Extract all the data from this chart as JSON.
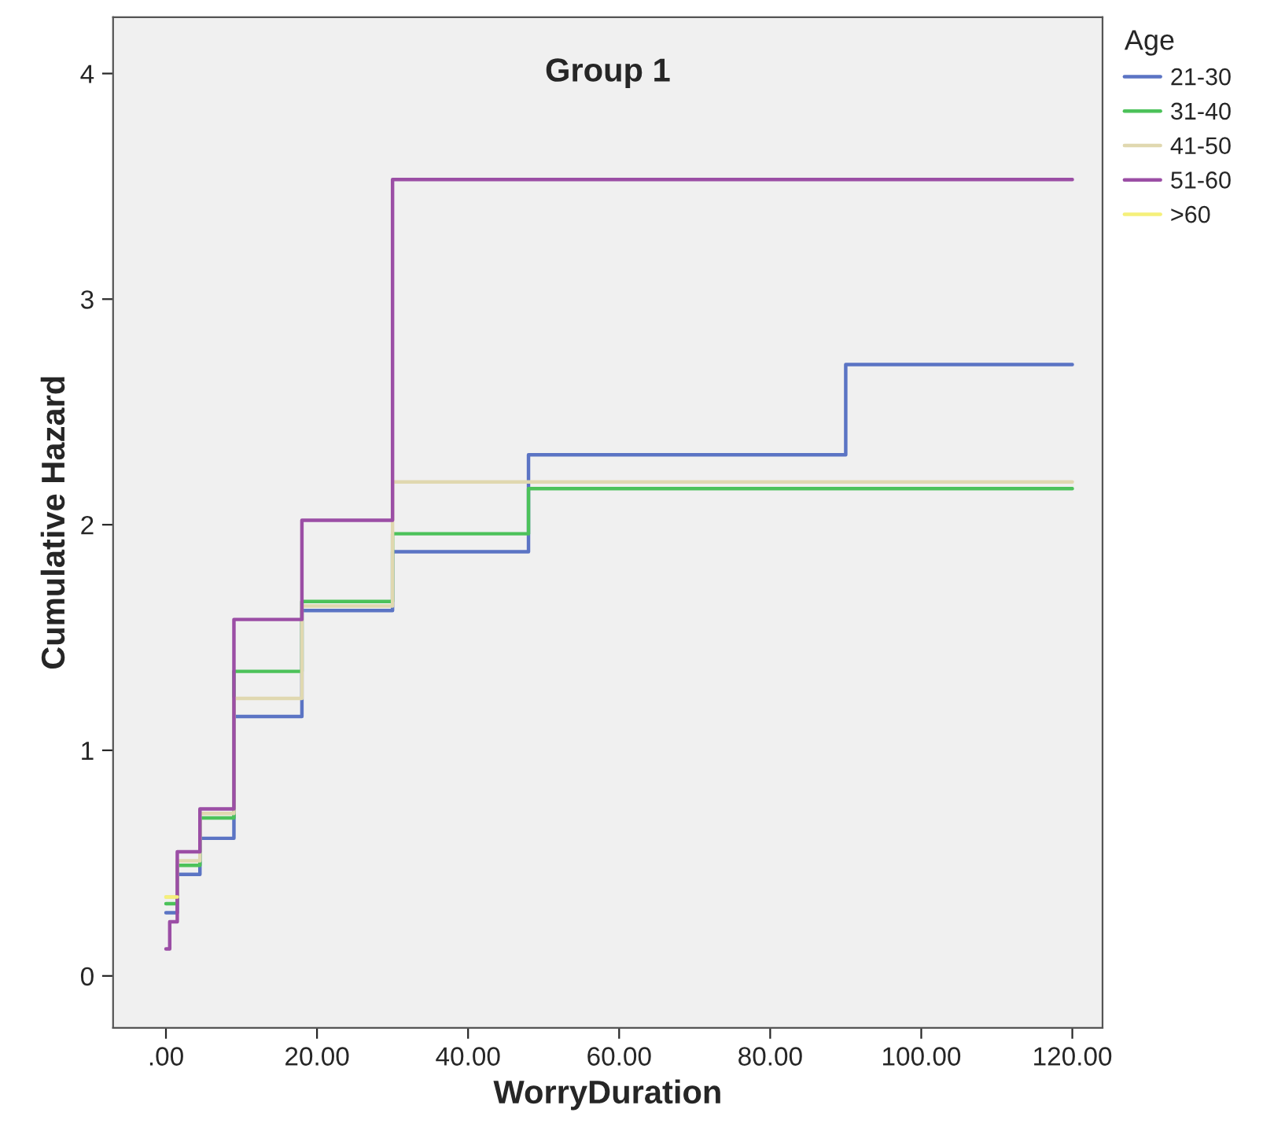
{
  "chart_data": {
    "type": "step",
    "title": "Group 1",
    "xlabel": "WorryDuration",
    "ylabel": "Cumulative Hazard",
    "legend_title": "Age",
    "legend": "right",
    "grid": false,
    "xlim": [
      -7,
      124
    ],
    "ylim": [
      -0.23,
      4.25
    ],
    "xticks": [
      {
        "value": 0,
        "label": ".00"
      },
      {
        "value": 20,
        "label": "20.00"
      },
      {
        "value": 40,
        "label": "40.00"
      },
      {
        "value": 60,
        "label": "60.00"
      },
      {
        "value": 80,
        "label": "80.00"
      },
      {
        "value": 100,
        "label": "100.00"
      },
      {
        "value": 120,
        "label": "120.00"
      }
    ],
    "yticks": [
      0,
      1,
      2,
      3,
      4
    ],
    "series": [
      {
        "name": "21-30",
        "color": "#5b74c4",
        "x": [
          0,
          1.5,
          4.5,
          9,
          18,
          30,
          48,
          90,
          120
        ],
        "values": [
          0.28,
          0.45,
          0.61,
          1.15,
          1.62,
          1.88,
          2.31,
          2.71,
          2.71
        ]
      },
      {
        "name": "31-40",
        "color": "#4cc25a",
        "x": [
          0,
          1.5,
          4.5,
          9,
          18,
          30,
          48,
          120
        ],
        "values": [
          0.32,
          0.49,
          0.7,
          1.35,
          1.66,
          1.96,
          2.16,
          2.16
        ]
      },
      {
        "name": "41-50",
        "color": "#e0d8b0",
        "x": [
          0,
          1.5,
          4.5,
          9,
          18,
          30,
          120
        ],
        "values": [
          0.35,
          0.51,
          0.72,
          1.23,
          1.64,
          2.19,
          2.19
        ]
      },
      {
        "name": "51-60",
        "color": "#9b4ea5",
        "x": [
          0,
          0.5,
          1.5,
          4.5,
          9,
          18,
          30,
          120
        ],
        "values": [
          0.12,
          0.24,
          0.55,
          0.74,
          1.58,
          2.02,
          3.53,
          3.53
        ]
      },
      {
        "name": ">60",
        "color": "#f5f07a",
        "x": [
          0,
          1.5
        ],
        "values": [
          0.35,
          0.35
        ]
      }
    ]
  }
}
